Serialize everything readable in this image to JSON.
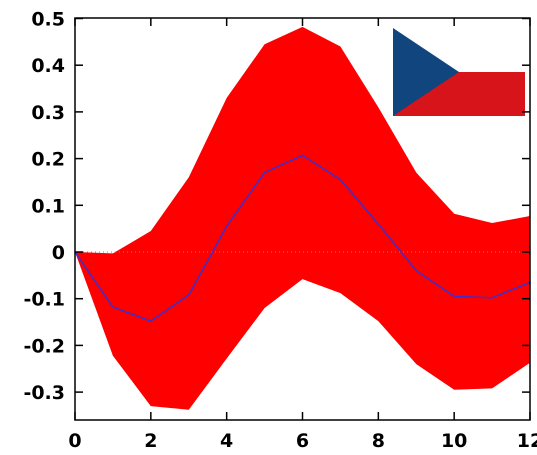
{
  "chart_data": {
    "type": "area",
    "title": "",
    "xlabel": "",
    "ylabel": "",
    "x": [
      0,
      1,
      2,
      3,
      4,
      5,
      6,
      7,
      8,
      9,
      10,
      11,
      12
    ],
    "xlim": [
      0,
      12
    ],
    "ylim": [
      -0.35,
      0.5
    ],
    "x_ticks": [
      "0",
      "2",
      "4",
      "6",
      "8",
      "10",
      "12"
    ],
    "y_ticks": [
      "0.5",
      "0.4",
      "0.3",
      "0.2",
      "0.1",
      "0",
      "-0.1",
      "-0.2",
      "-0.3"
    ],
    "series": [
      {
        "role": "mean",
        "color": "#3a2fd0",
        "values": [
          0,
          -0.118,
          -0.148,
          -0.092,
          0.055,
          0.17,
          0.207,
          0.155,
          0.06,
          -0.04,
          -0.095,
          -0.098,
          -0.065
        ]
      },
      {
        "role": "band-upper",
        "color": "#ff0000",
        "values": [
          0,
          -0.003,
          0.045,
          0.16,
          0.33,
          0.445,
          0.482,
          0.44,
          0.31,
          0.17,
          0.082,
          0.062,
          0.077
        ]
      },
      {
        "role": "band-lower",
        "color": "#ff0000",
        "values": [
          0,
          -0.222,
          -0.33,
          -0.338,
          -0.228,
          -0.12,
          -0.058,
          -0.088,
          -0.148,
          -0.24,
          -0.295,
          -0.292,
          -0.237
        ]
      }
    ],
    "grid": false,
    "zero_line": "dotted",
    "inset": {
      "kind": "flag",
      "country": "Czech Republic",
      "placement": "top-right",
      "colors": {
        "white": "#ffffff",
        "red": "#d7141a",
        "blue": "#11457e"
      }
    }
  }
}
